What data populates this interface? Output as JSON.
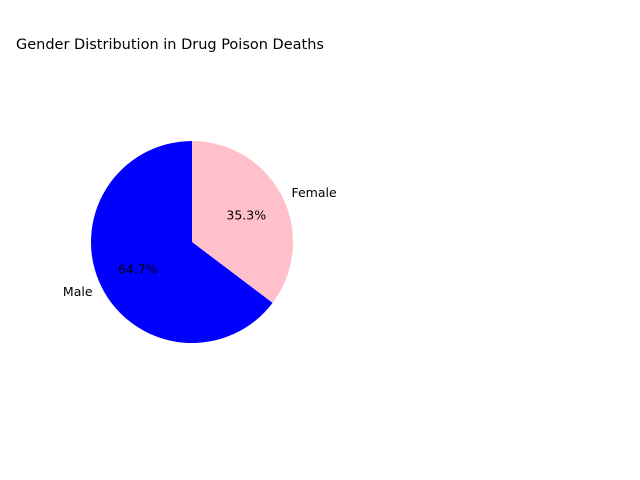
{
  "chart_data": {
    "type": "pie",
    "title": "Gender Distribution in Drug Poison Deaths",
    "slices": [
      {
        "label": "Female",
        "value": 35.3,
        "pct_label": "35.3%",
        "color": "#ffc0cb"
      },
      {
        "label": "Male",
        "value": 64.7,
        "pct_label": "64.7%",
        "color": "#0000ff"
      }
    ],
    "start_angle_deg": 90,
    "direction": "clockwise",
    "legend": "none"
  }
}
